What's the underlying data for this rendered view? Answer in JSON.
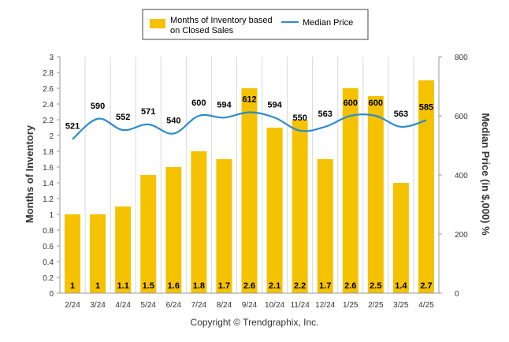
{
  "chart_data": {
    "type": "bar",
    "categories": [
      "2/24",
      "3/24",
      "4/24",
      "5/24",
      "6/24",
      "7/24",
      "8/24",
      "9/24",
      "10/24",
      "11/24",
      "12/24",
      "1/25",
      "2/25",
      "3/25",
      "4/25"
    ],
    "series": [
      {
        "name": "Months of Inventory based on Closed Sales",
        "type": "bar",
        "axis": "left",
        "color": "#f5c200",
        "values": [
          1,
          1,
          1.1,
          1.5,
          1.6,
          1.8,
          1.7,
          2.6,
          2.1,
          2.2,
          1.7,
          2.6,
          2.5,
          1.4,
          2.7
        ],
        "labels": [
          "1",
          "1",
          "1.1",
          "1.5",
          "1.6",
          "1.8",
          "1.7",
          "2.6",
          "2.1",
          "2.2",
          "1.7",
          "2.6",
          "2.5",
          "1.4",
          "2.7"
        ]
      },
      {
        "name": "Median Price",
        "type": "line",
        "axis": "right",
        "color": "#2b8ccb",
        "values": [
          521,
          590,
          552,
          571,
          540,
          600,
          594,
          612,
          594,
          550,
          563,
          600,
          600,
          563,
          585
        ],
        "labels": [
          "521",
          "590",
          "552",
          "571",
          "540",
          "600",
          "594",
          "612",
          "594",
          "550",
          "563",
          "600",
          "600",
          "563",
          "585"
        ]
      }
    ],
    "legend": {
      "placement": "top",
      "bar_label_lines": [
        "Months of Inventory based",
        "on Closed Sales"
      ],
      "line_label": "Median Price"
    },
    "ylabel": "Months of Inventory",
    "y2label": "Median Price (in $,000) %",
    "ylim": [
      0,
      3
    ],
    "y2lim": [
      0,
      800
    ],
    "yticks": [
      "0",
      "0.2",
      "0.4",
      "0.6",
      "0.8",
      "1",
      "1.2",
      "1.4",
      "1.6",
      "1.8",
      "2",
      "2.2",
      "2.4",
      "2.6",
      "2.8",
      "3"
    ],
    "y2ticks": [
      "0",
      "200",
      "400",
      "600",
      "800"
    ],
    "grid": "vertical",
    "copyright": "Copyright © Trendgraphix, Inc."
  }
}
